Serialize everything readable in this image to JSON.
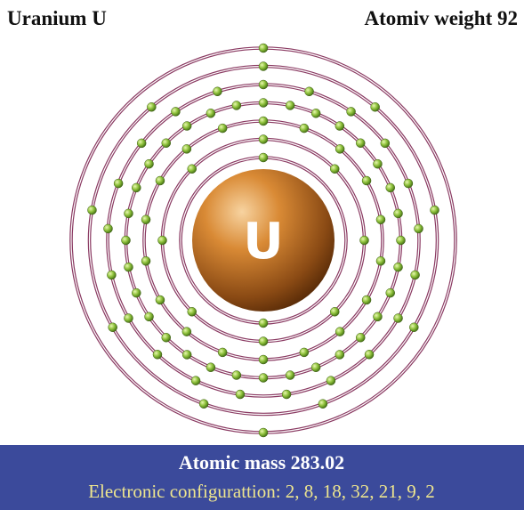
{
  "header": {
    "title": "Uranium U",
    "weight": "Atomiv weight 92"
  },
  "nucleus": {
    "symbol": "U"
  },
  "shells": [
    2,
    8,
    18,
    32,
    21,
    9,
    2
  ],
  "footer": {
    "mass": "Atomic mass 283.02",
    "configuration": "Electronic configurattion: 2, 8, 18, 32, 21, 9, 2"
  }
}
